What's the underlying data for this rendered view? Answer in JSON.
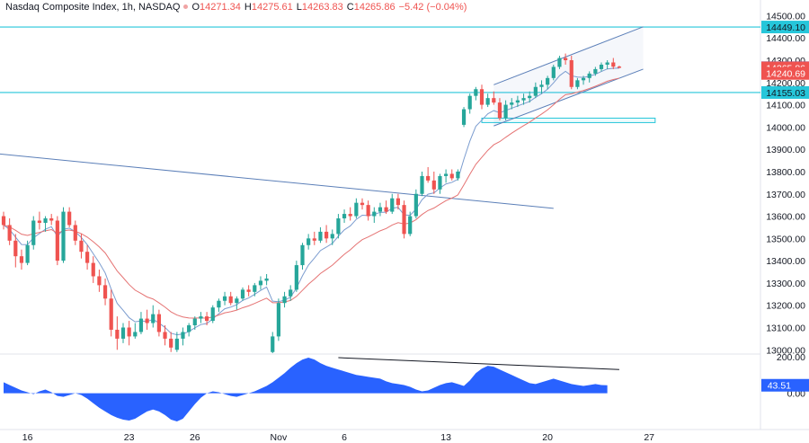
{
  "header": {
    "symbol_label": "Nasdaq Composite Index, 1h, NASDAQ",
    "open_label": "O",
    "open_value": "14271.34",
    "high_label": "H",
    "high_value": "14275.61",
    "low_label": "L",
    "low_value": "14263.83",
    "close_label": "C",
    "close_value": "14265.86",
    "change_value": "−5.42 (−0.04%)"
  },
  "colors": {
    "up": "#26a69a",
    "down": "#ef5350",
    "level_line": "#26c6da",
    "channel": "#5b7fb8",
    "ma_fast": "#7b9ccf",
    "ma_slow": "#e57373",
    "oscillator": "#2962ff",
    "price_badge_red": "#ef5350",
    "price_badge_blue": "#2962ff"
  },
  "chart_data": {
    "type": "candlestick",
    "price_axis": {
      "ticks": [
        13000,
        13100,
        13200,
        13300,
        13400,
        13500,
        13600,
        13700,
        13800,
        13900,
        14000,
        14100,
        14200,
        14300,
        14400,
        14500
      ],
      "tick_labels": [
        "13000.00",
        "13100.00",
        "13200.00",
        "13300.00",
        "13400.00",
        "13500.00",
        "13600.00",
        "13700.00",
        "13800.00",
        "13900.00",
        "14000.00",
        "14100.00",
        "14200.00",
        "14300.00",
        "14400.00",
        "14500.00"
      ],
      "range": [
        12985,
        14530
      ]
    },
    "time_axis": {
      "ticks": [
        {
          "label": "16",
          "bar": 4
        },
        {
          "label": "23",
          "bar": 21
        },
        {
          "label": "26",
          "bar": 32
        },
        {
          "label": "Nov",
          "bar": 46
        },
        {
          "label": "6",
          "bar": 57
        },
        {
          "label": "13",
          "bar": 74
        },
        {
          "label": "20",
          "bar": 91
        },
        {
          "label": "27",
          "bar": 108
        }
      ],
      "bar_count": 118
    },
    "horizontal_levels": [
      14449.1,
      14155.03
    ],
    "badges": [
      {
        "label": "14449.10",
        "value": 14449.1,
        "color": "#26c6da",
        "text_color": "#131722"
      },
      {
        "label": "14266.35",
        "value": 14266.35,
        "color": "#2962ff",
        "text_color": "#ffffff"
      },
      {
        "label": "14265.86",
        "value": 14265.86,
        "color": "#ef5350",
        "text_color": "#ffffff"
      },
      {
        "label": "14240.69",
        "value": 14240.69,
        "color": "#ef5350",
        "text_color": "#ffffff"
      },
      {
        "label": "14155.03",
        "value": 14155.03,
        "color": "#26c6da",
        "text_color": "#131722"
      }
    ],
    "candles": [
      [
        13600,
        13620,
        13540,
        13560
      ],
      [
        13560,
        13590,
        13470,
        13490
      ],
      [
        13490,
        13520,
        13370,
        13420
      ],
      [
        13420,
        13450,
        13360,
        13390
      ],
      [
        13390,
        13490,
        13380,
        13470
      ],
      [
        13470,
        13600,
        13450,
        13580
      ],
      [
        13580,
        13620,
        13540,
        13570
      ],
      [
        13570,
        13600,
        13530,
        13590
      ],
      [
        13590,
        13610,
        13560,
        13580
      ],
      [
        13580,
        13600,
        13380,
        13400
      ],
      [
        13400,
        13640,
        13390,
        13620
      ],
      [
        13620,
        13640,
        13550,
        13560
      ],
      [
        13560,
        13580,
        13470,
        13490
      ],
      [
        13490,
        13520,
        13410,
        13440
      ],
      [
        13440,
        13470,
        13360,
        13390
      ],
      [
        13390,
        13420,
        13300,
        13330
      ],
      [
        13330,
        13360,
        13260,
        13290
      ],
      [
        13290,
        13320,
        13200,
        13230
      ],
      [
        13230,
        13270,
        13060,
        13090
      ],
      [
        13090,
        13150,
        13000,
        13050
      ],
      [
        13050,
        13120,
        13030,
        13100
      ],
      [
        13100,
        13130,
        13020,
        13060
      ],
      [
        13060,
        13120,
        13050,
        13080
      ],
      [
        13080,
        13170,
        13070,
        13140
      ],
      [
        13140,
        13180,
        13090,
        13120
      ],
      [
        13120,
        13200,
        13100,
        13160
      ],
      [
        13160,
        13180,
        13060,
        13080
      ],
      [
        13080,
        13110,
        13020,
        13050
      ],
      [
        13050,
        13080,
        12990,
        13010
      ],
      [
        13000,
        13080,
        12990,
        13050
      ],
      [
        13050,
        13100,
        13020,
        13080
      ],
      [
        13080,
        13120,
        13060,
        13110
      ],
      [
        13110,
        13150,
        13090,
        13140
      ],
      [
        13140,
        13170,
        13120,
        13150
      ],
      [
        13150,
        13170,
        13110,
        13130
      ],
      [
        13130,
        13200,
        13120,
        13190
      ],
      [
        13190,
        13230,
        13170,
        13220
      ],
      [
        13220,
        13260,
        13200,
        13240
      ],
      [
        13240,
        13260,
        13200,
        13210
      ],
      [
        13210,
        13240,
        13180,
        13230
      ],
      [
        13230,
        13280,
        13220,
        13270
      ],
      [
        13270,
        13290,
        13240,
        13260
      ],
      [
        13260,
        13300,
        13240,
        13290
      ],
      [
        13290,
        13330,
        13270,
        13310
      ],
      [
        13310,
        13340,
        13290,
        13320
      ],
      [
        12990,
        13080,
        12980,
        13060
      ],
      [
        13060,
        13230,
        13040,
        13210
      ],
      [
        13210,
        13260,
        13190,
        13240
      ],
      [
        13240,
        13290,
        13220,
        13270
      ],
      [
        13270,
        13400,
        13260,
        13380
      ],
      [
        13380,
        13480,
        13360,
        13470
      ],
      [
        13470,
        13520,
        13450,
        13500
      ],
      [
        13500,
        13530,
        13470,
        13490
      ],
      [
        13490,
        13550,
        13480,
        13530
      ],
      [
        13530,
        13560,
        13480,
        13500
      ],
      [
        13500,
        13540,
        13470,
        13520
      ],
      [
        13520,
        13610,
        13500,
        13590
      ],
      [
        13590,
        13630,
        13570,
        13610
      ],
      [
        13610,
        13640,
        13580,
        13600
      ],
      [
        13600,
        13680,
        13590,
        13660
      ],
      [
        13660,
        13680,
        13630,
        13650
      ],
      [
        13650,
        13670,
        13580,
        13600
      ],
      [
        13600,
        13640,
        13570,
        13620
      ],
      [
        13620,
        13660,
        13600,
        13640
      ],
      [
        13640,
        13670,
        13610,
        13620
      ],
      [
        13620,
        13700,
        13610,
        13680
      ],
      [
        13680,
        13700,
        13630,
        13650
      ],
      [
        13650,
        13670,
        13500,
        13520
      ],
      [
        13520,
        13620,
        13510,
        13600
      ],
      [
        13600,
        13720,
        13590,
        13700
      ],
      [
        13700,
        13800,
        13690,
        13780
      ],
      [
        13780,
        13820,
        13750,
        13760
      ],
      [
        13760,
        13800,
        13700,
        13720
      ],
      [
        13720,
        13790,
        13700,
        13780
      ],
      [
        13780,
        13810,
        13750,
        13790
      ],
      [
        13790,
        13810,
        13760,
        13770
      ],
      [
        13770,
        13810,
        13760,
        13800
      ],
      [
        14010,
        14090,
        14000,
        14080
      ],
      [
        14080,
        14150,
        14060,
        14140
      ],
      [
        14140,
        14180,
        14120,
        14170
      ],
      [
        14170,
        14190,
        14080,
        14100
      ],
      [
        14100,
        14150,
        14090,
        14130
      ],
      [
        14130,
        14160,
        14100,
        14110
      ],
      [
        14110,
        14130,
        14030,
        14040
      ],
      [
        14040,
        14120,
        14030,
        14100
      ],
      [
        14100,
        14130,
        14080,
        14110
      ],
      [
        14110,
        14140,
        14090,
        14120
      ],
      [
        14120,
        14150,
        14100,
        14130
      ],
      [
        14130,
        14160,
        14110,
        14140
      ],
      [
        14140,
        14200,
        14130,
        14180
      ],
      [
        14180,
        14210,
        14150,
        14190
      ],
      [
        14190,
        14230,
        14170,
        14220
      ],
      [
        14220,
        14280,
        14210,
        14270
      ],
      [
        14270,
        14320,
        14260,
        14310
      ],
      [
        14310,
        14330,
        14280,
        14300
      ],
      [
        14300,
        14320,
        14170,
        14180
      ],
      [
        14180,
        14220,
        14170,
        14210
      ],
      [
        14210,
        14230,
        14190,
        14220
      ],
      [
        14220,
        14250,
        14200,
        14240
      ],
      [
        14240,
        14270,
        14230,
        14260
      ],
      [
        14260,
        14290,
        14250,
        14280
      ],
      [
        14280,
        14300,
        14260,
        14290
      ],
      [
        14290,
        14310,
        14260,
        14271
      ],
      [
        14271.34,
        14275.61,
        14263.83,
        14265.86
      ]
    ],
    "trend_line": {
      "from": {
        "bar": -1,
        "value": 13880
      },
      "to": {
        "bar": 92,
        "value": 13635
      }
    },
    "channel_upper": {
      "from": {
        "bar": 82,
        "value": 14190
      },
      "to": {
        "bar": 107,
        "value": 14450
      }
    },
    "channel_lower": {
      "from": {
        "bar": 82,
        "value": 14005
      },
      "to": {
        "bar": 107,
        "value": 14260
      }
    },
    "zone": {
      "from_bar": 80,
      "to_bar": 109,
      "top": 14040,
      "bottom": 14020
    },
    "oscillator": {
      "ticks": [
        200,
        0
      ],
      "tick_labels": [
        "200.00",
        "0.00"
      ],
      "range": [
        -160,
        210
      ],
      "current_label": "43.51",
      "current_value": 43.51,
      "divergence_line": {
        "from": {
          "bar": 56,
          "value": 195
        },
        "to": {
          "bar": 103,
          "value": 130
        }
      },
      "values": [
        60,
        45,
        30,
        15,
        5,
        -5,
        10,
        20,
        5,
        -15,
        -20,
        -10,
        0,
        -10,
        -30,
        -55,
        -80,
        -100,
        -120,
        -135,
        -145,
        -150,
        -140,
        -120,
        -100,
        -90,
        -100,
        -120,
        -145,
        -155,
        -140,
        -100,
        -60,
        -25,
        0,
        10,
        5,
        -5,
        -15,
        -20,
        -10,
        0,
        10,
        25,
        40,
        60,
        85,
        110,
        140,
        165,
        185,
        195,
        185,
        165,
        150,
        140,
        130,
        120,
        110,
        100,
        95,
        90,
        85,
        80,
        65,
        55,
        50,
        45,
        35,
        20,
        10,
        15,
        30,
        45,
        55,
        60,
        50,
        40,
        70,
        110,
        135,
        150,
        145,
        130,
        115,
        100,
        85,
        70,
        55,
        50,
        60,
        70,
        80,
        70,
        60,
        50,
        45,
        40,
        45,
        50,
        45,
        43.51
      ]
    }
  }
}
